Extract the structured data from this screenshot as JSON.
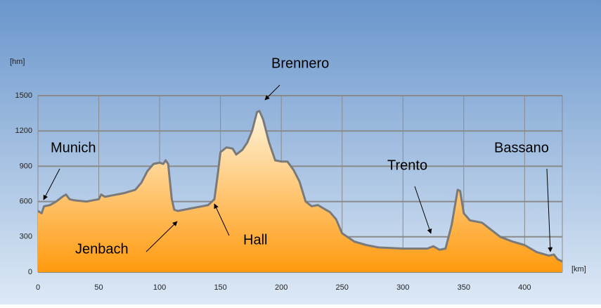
{
  "chart_data": {
    "type": "area",
    "y_label": "[hm]",
    "x_label": "[km]",
    "annotations": [
      "Munich",
      "Jenbach",
      "Hall",
      "Brennero",
      "Trento",
      "Bassano"
    ],
    "x": [
      0,
      3,
      5,
      10,
      15,
      20,
      23,
      26,
      30,
      40,
      50,
      52,
      55,
      60,
      70,
      80,
      85,
      90,
      95,
      100,
      103,
      105,
      107,
      110,
      112,
      115,
      125,
      135,
      140,
      145,
      148,
      150,
      155,
      160,
      163,
      168,
      172,
      176,
      180,
      182,
      185,
      190,
      195,
      200,
      205,
      210,
      215,
      220,
      225,
      230,
      240,
      245,
      250,
      260,
      270,
      280,
      300,
      320,
      325,
      330,
      335,
      340,
      345,
      347,
      350,
      355,
      365,
      370,
      380,
      390,
      400,
      410,
      420,
      424,
      427,
      431
    ],
    "values": [
      520,
      500,
      560,
      570,
      600,
      640,
      660,
      620,
      610,
      600,
      620,
      660,
      640,
      650,
      670,
      700,
      760,
      860,
      920,
      930,
      920,
      950,
      920,
      620,
      530,
      520,
      540,
      560,
      570,
      620,
      850,
      1020,
      1060,
      1050,
      1000,
      1040,
      1100,
      1200,
      1360,
      1370,
      1300,
      1100,
      950,
      940,
      940,
      870,
      770,
      600,
      560,
      570,
      510,
      450,
      330,
      260,
      230,
      210,
      200,
      200,
      220,
      190,
      200,
      400,
      700,
      690,
      500,
      440,
      420,
      380,
      300,
      260,
      230,
      170,
      140,
      150,
      110,
      90
    ],
    "color": "#ff9a0e",
    "xlim": [
      0,
      431
    ],
    "xticks": [
      0,
      50,
      100,
      150,
      200,
      250,
      300,
      350,
      400
    ],
    "ylim": [
      0,
      1500
    ],
    "yticks": [
      0,
      300,
      600,
      900,
      1200,
      1500
    ],
    "grid": true
  }
}
